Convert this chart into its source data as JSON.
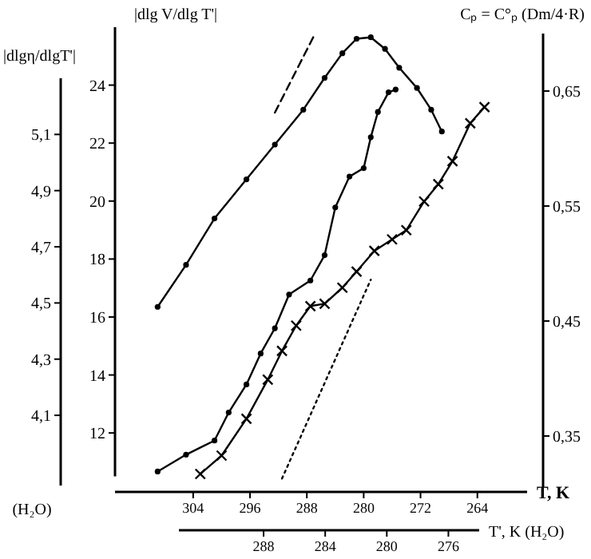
{
  "chart_data": {
    "type": "line",
    "xlabel": "T, K",
    "x2label": "T', K (H₂O)",
    "ylabel": "|dlg V/dlg T'|",
    "y3label": "|dlgη/dlgT'|",
    "y2label": "Cₚ = C°ₚ (Dm/4·R)",
    "annotations": [
      "(H₂O)"
    ],
    "xlim": [
      315,
      257
    ],
    "xticks": [
      304,
      296,
      288,
      280,
      272,
      264
    ],
    "x2lim": [
      293.5,
      274
    ],
    "x2ticks": [
      288,
      284,
      280,
      276
    ],
    "ylim": [
      10.5,
      26
    ],
    "yticks": [
      12,
      14,
      16,
      18,
      20,
      22,
      24
    ],
    "y3lim": [
      3.85,
      5.3
    ],
    "y3ticks": [
      {
        "value": 4.1,
        "label": "4,1"
      },
      {
        "value": 4.3,
        "label": "4,3"
      },
      {
        "value": 4.5,
        "label": "4,5"
      },
      {
        "value": 4.7,
        "label": "4,7"
      },
      {
        "value": 4.9,
        "label": "4,9"
      },
      {
        "value": 5.1,
        "label": "5,1"
      }
    ],
    "y2lim": [
      0.305,
      0.7
    ],
    "y2ticks": [
      {
        "value": 0.35,
        "label": "0,35"
      },
      {
        "value": 0.45,
        "label": "0,45"
      },
      {
        "value": 0.55,
        "label": "0,55"
      },
      {
        "value": 0.65,
        "label": "0,65"
      }
    ],
    "series": [
      {
        "color": "#000000",
        "marker": "circle",
        "x": [
          309,
          305,
          301,
          296.5,
          292.5,
          288.5,
          285.5,
          283,
          281,
          279,
          277,
          275,
          272.5,
          270.5,
          269
        ],
        "values": [
          16.35,
          17.8,
          19.4,
          20.75,
          21.95,
          23.15,
          24.25,
          25.1,
          25.6,
          25.65,
          25.25,
          24.6,
          23.9,
          23.15,
          22.4
        ]
      },
      {
        "color": "#000000",
        "marker": "none",
        "line_style": "dashed",
        "x": [
          292.5,
          287
        ],
        "values": [
          23.05,
          25.7
        ]
      },
      {
        "color": "#000000",
        "marker": "circle",
        "axis": "y3",
        "x": [
          309,
          305,
          301,
          299,
          296.5,
          294.5,
          292.5,
          290.5,
          287.5,
          285.5,
          284,
          282,
          280,
          279,
          278,
          276.5,
          275.5
        ],
        "values": [
          3.9,
          3.96,
          4.01,
          4.11,
          4.21,
          4.32,
          4.41,
          4.53,
          4.58,
          4.67,
          4.84,
          4.95,
          4.98,
          5.09,
          5.18,
          5.25,
          5.26
        ]
      },
      {
        "color": "#000000",
        "marker": "cross",
        "axis": "y2",
        "x": [
          303,
          300,
          296.5,
          293.5,
          291.5,
          289.5,
          287.5,
          285.5,
          283,
          281,
          278.5,
          276,
          274,
          271.5,
          269.5,
          267.5,
          265,
          263
        ],
        "values": [
          0.317,
          0.333,
          0.365,
          0.399,
          0.424,
          0.446,
          0.463,
          0.465,
          0.479,
          0.493,
          0.511,
          0.521,
          0.529,
          0.554,
          0.569,
          0.589,
          0.622,
          0.636
        ]
      },
      {
        "color": "#000000",
        "marker": "none",
        "line_style": "dotted",
        "axis": "y2",
        "x": [
          291.5,
          279
        ],
        "values": [
          0.313,
          0.486
        ]
      }
    ]
  }
}
